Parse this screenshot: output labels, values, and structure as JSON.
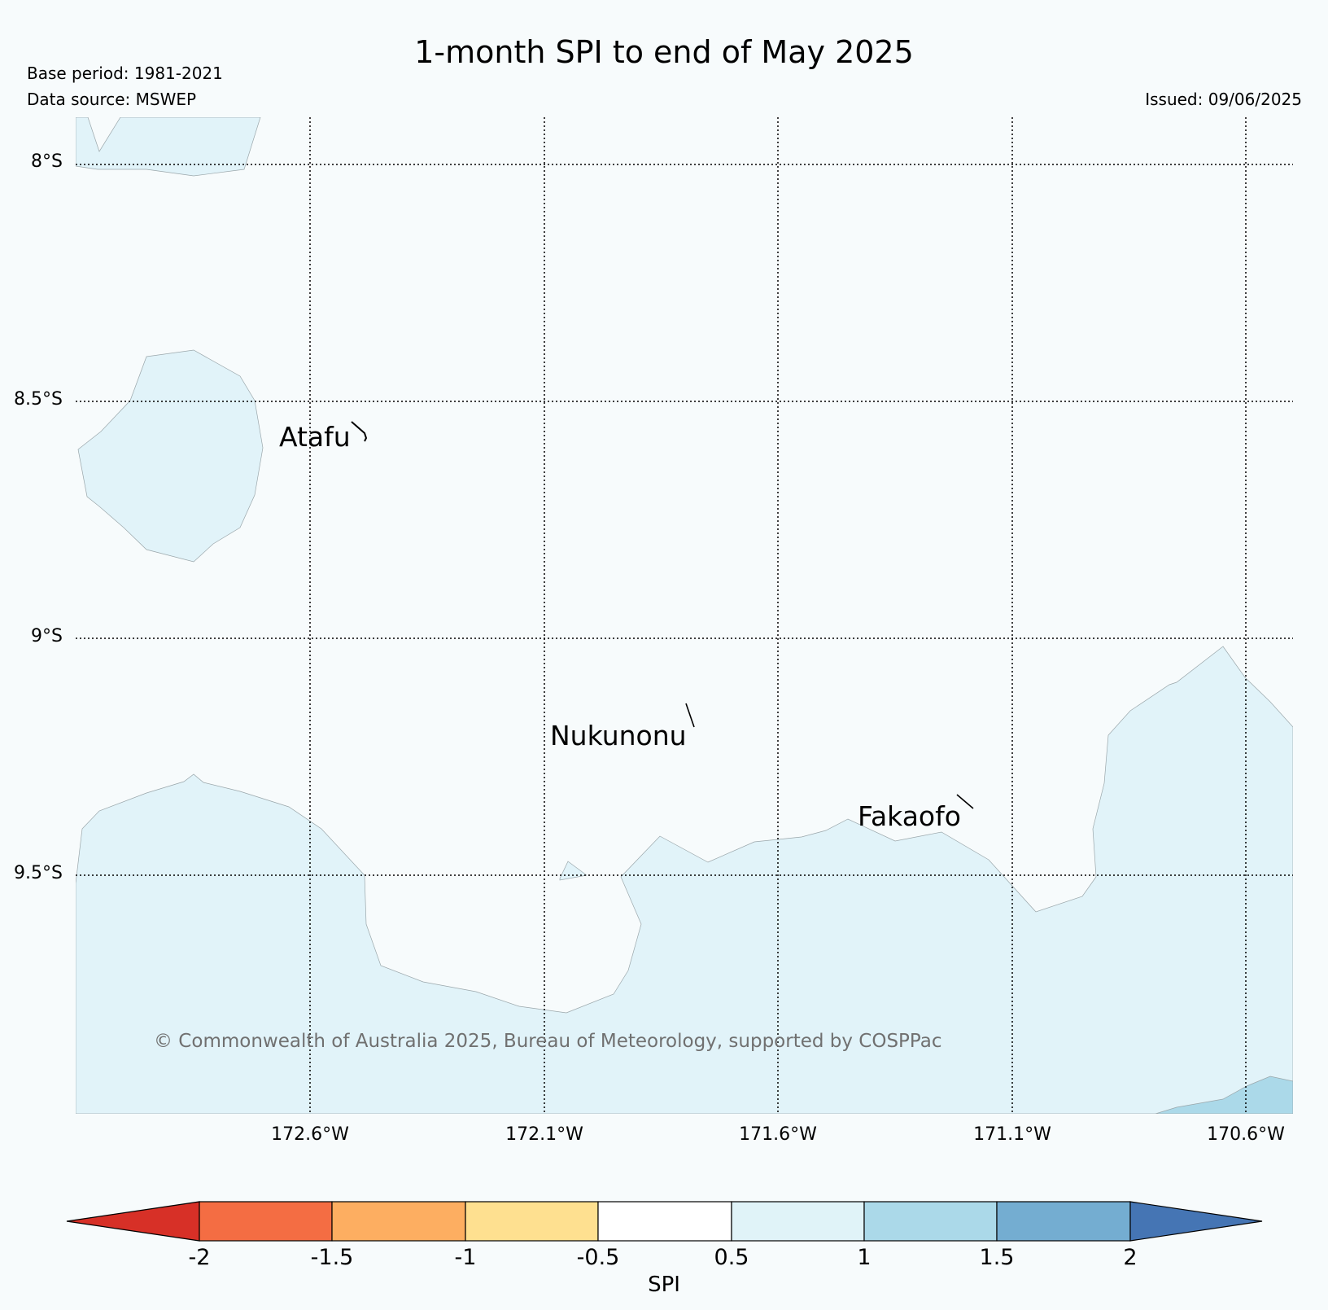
{
  "title": "1-month SPI to end of May 2025",
  "base_period": "Base period: 1981-2021",
  "data_source": "Data source: MSWEP",
  "issued": "Issued: 09/06/2025",
  "copyright": "© Commonwealth of Australia 2025, Bureau of Meteorology, supported by COSPPac",
  "map": {
    "lat_labels": [
      "8°S",
      "8.5°S",
      "9°S",
      "9.5°S"
    ],
    "lon_labels": [
      "172.6°W",
      "172.1°W",
      "171.6°W",
      "171.1°W",
      "170.6°W"
    ],
    "places": [
      {
        "name": "Atafu",
        "lon": -172.52,
        "lat": -8.58
      },
      {
        "name": "Nukunonu",
        "lon": -171.83,
        "lat": -9.17
      },
      {
        "name": "Fakaofo",
        "lon": -171.22,
        "lat": -9.38
      }
    ],
    "fill_colors": {
      "0.5_to_1": "#e1f3f9",
      "1_to_1.5": "#abd9e9"
    }
  },
  "colorbar": {
    "label": "SPI",
    "ticks": [
      "-2",
      "-1.5",
      "-1",
      "-0.5",
      "0.5",
      "1",
      "1.5",
      "2"
    ],
    "colors": [
      "#d73027",
      "#f46d43",
      "#fdae61",
      "#fee090",
      "#ffffff",
      "#e0f3f8",
      "#abd9e9",
      "#74add1",
      "#4575b4"
    ]
  }
}
